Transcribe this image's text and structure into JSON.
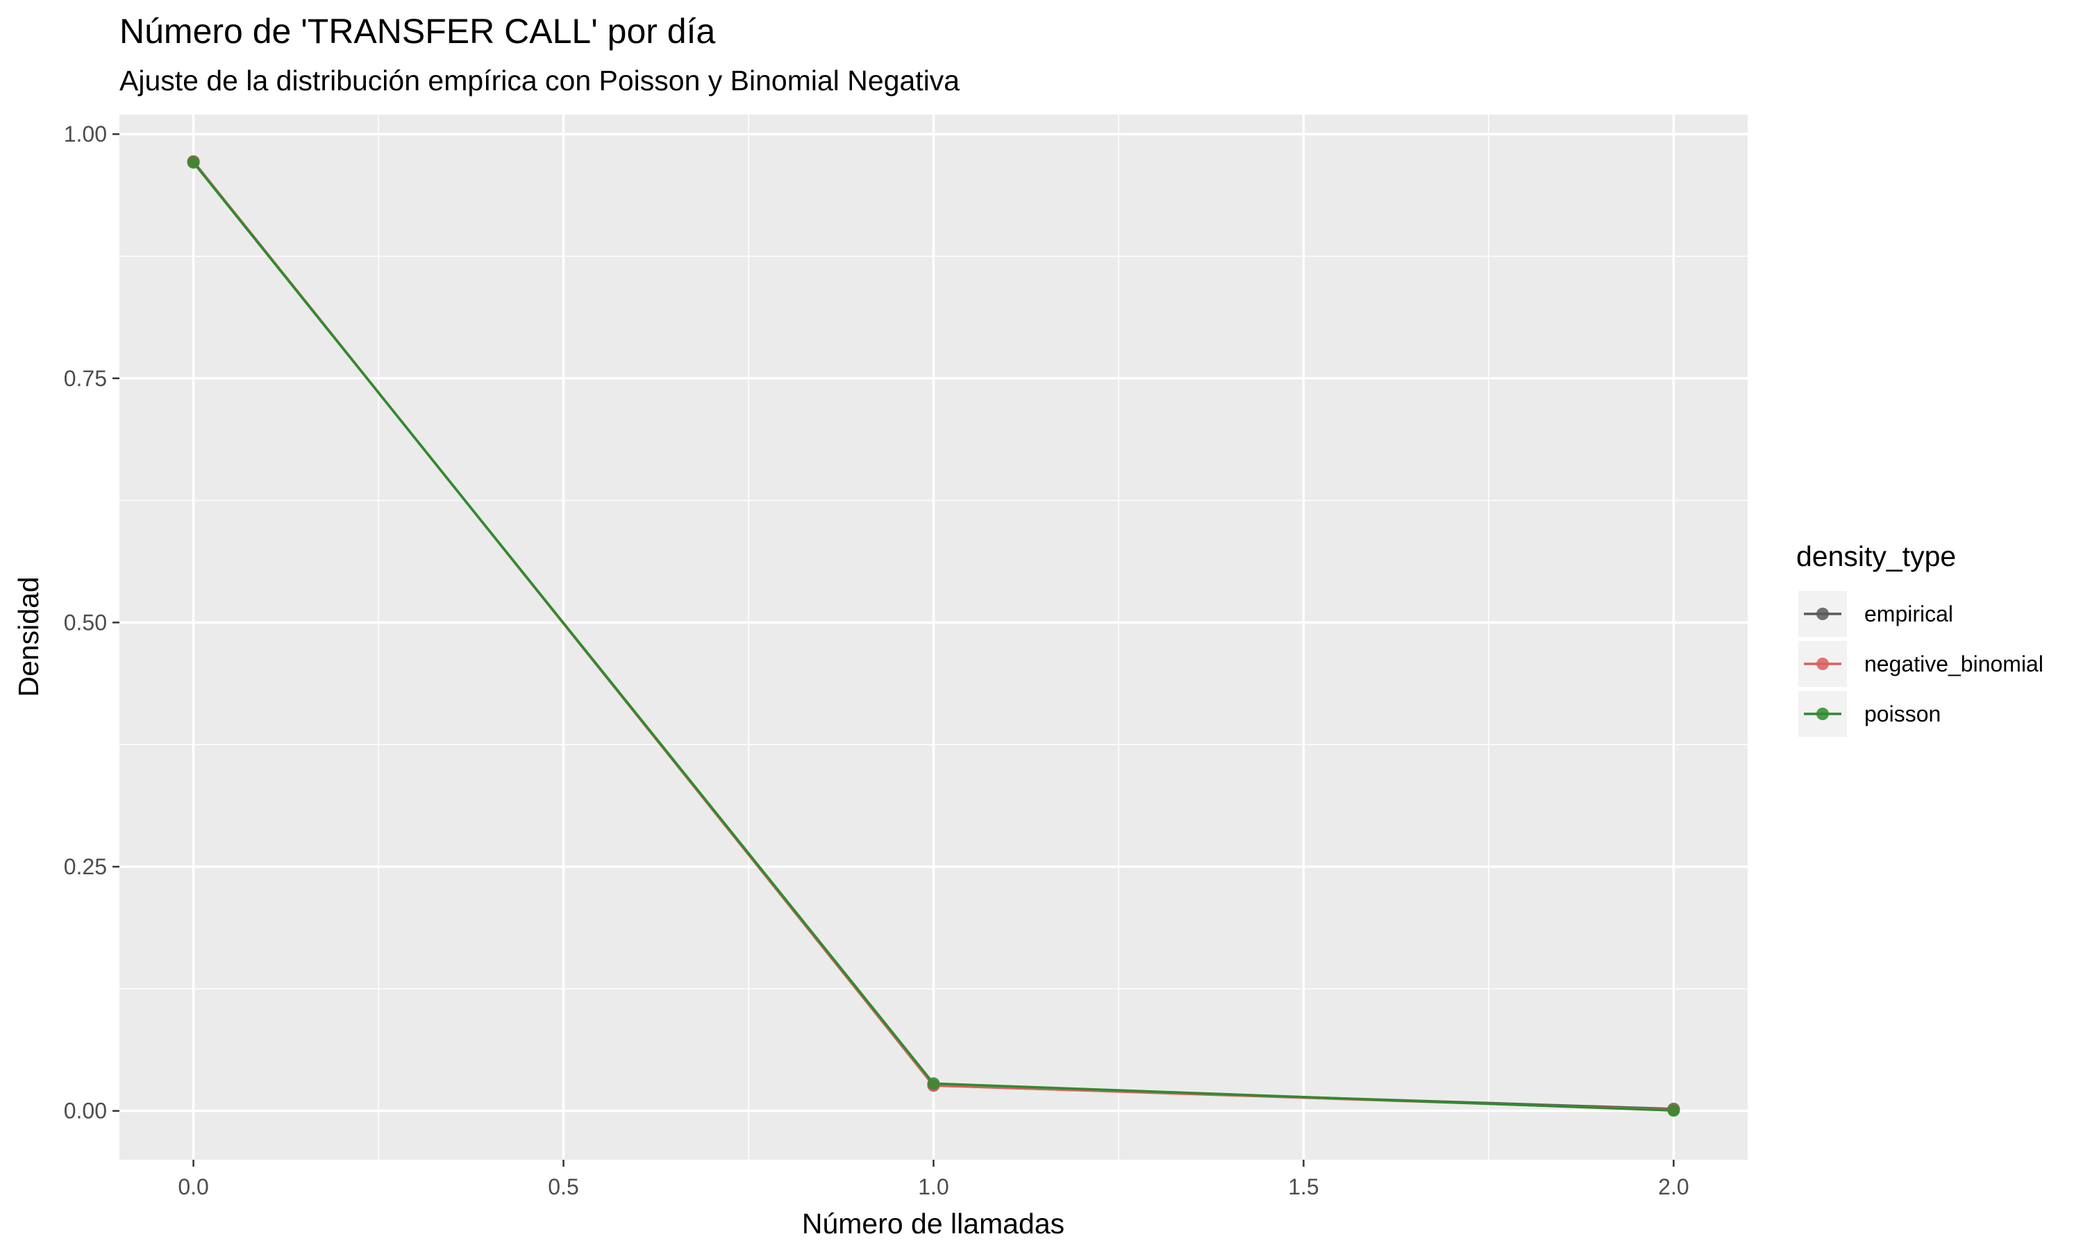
{
  "chart_data": {
    "type": "line",
    "title": "Número de 'TRANSFER CALL' por día",
    "subtitle": "Ajuste de la distribución empírica con Poisson y Binomial Negativa",
    "xlabel": "Número de llamadas",
    "ylabel": "Densidad",
    "x": [
      0,
      1,
      2
    ],
    "xlim": [
      -0.1,
      2.1
    ],
    "ylim": [
      -0.05,
      1.02
    ],
    "x_ticks": [
      0.0,
      0.5,
      1.0,
      1.5,
      2.0
    ],
    "x_tick_labels": [
      "0.0",
      "0.5",
      "1.0",
      "1.5",
      "2.0"
    ],
    "y_ticks": [
      0.0,
      0.25,
      0.5,
      0.75,
      1.0
    ],
    "y_tick_labels": [
      "0.00",
      "0.25",
      "0.50",
      "0.75",
      "1.00"
    ],
    "grid": true,
    "legend": {
      "title": "density_type",
      "position": "right"
    },
    "series": [
      {
        "name": "empirical",
        "color": "#595959",
        "values": [
          0.972,
          0.026,
          0.002
        ]
      },
      {
        "name": "negative_binomial",
        "color": "#d9605f",
        "values": [
          0.972,
          0.026,
          0.001
        ]
      },
      {
        "name": "poisson",
        "color": "#2e8b2e",
        "values": [
          0.971,
          0.028,
          0.0004
        ]
      }
    ]
  }
}
